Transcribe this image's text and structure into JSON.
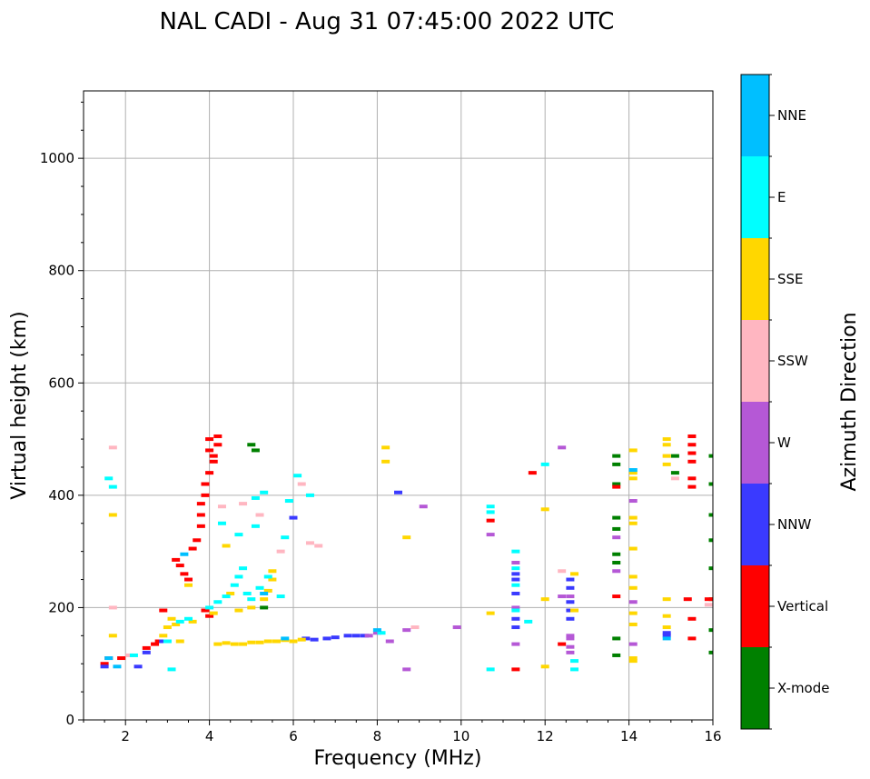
{
  "chart_data": {
    "type": "scatter",
    "title": "NAL CADI - Aug 31 07:45:00 2022 UTC",
    "xlabel": "Frequency (MHz)",
    "ylabel": "Virtual height (km)",
    "xlim": [
      1,
      16
    ],
    "ylim": [
      0,
      1120
    ],
    "xticks": [
      2,
      4,
      6,
      8,
      10,
      12,
      14,
      16
    ],
    "yticks": [
      0,
      200,
      400,
      600,
      800,
      1000
    ],
    "grid": true,
    "colorbar": {
      "label": "Azimuth Direction",
      "categories": [
        {
          "name": "X-mode",
          "color": "#008000"
        },
        {
          "name": "Vertical",
          "color": "#ff0000"
        },
        {
          "name": "NNW",
          "color": "#3a3aff"
        },
        {
          "name": "W",
          "color": "#b558d6"
        },
        {
          "name": "SSW",
          "color": "#ffb6c1"
        },
        {
          "name": "SSE",
          "color": "#ffd700"
        },
        {
          "name": "E",
          "color": "#00ffff"
        },
        {
          "name": "NNE",
          "color": "#00bfff"
        }
      ]
    },
    "series": [
      {
        "name": "X-mode",
        "points": [
          [
            5.0,
            490
          ],
          [
            5.1,
            480
          ],
          [
            5.3,
            200
          ],
          [
            13.7,
            470
          ],
          [
            13.7,
            455
          ],
          [
            13.7,
            420
          ],
          [
            13.7,
            360
          ],
          [
            13.7,
            340
          ],
          [
            13.7,
            295
          ],
          [
            13.7,
            280
          ],
          [
            13.7,
            145
          ],
          [
            13.7,
            115
          ],
          [
            15.1,
            470
          ],
          [
            15.1,
            440
          ],
          [
            16.0,
            470
          ],
          [
            16.0,
            420
          ],
          [
            16.0,
            365
          ],
          [
            16.0,
            320
          ],
          [
            16.0,
            270
          ],
          [
            16.0,
            215
          ],
          [
            16.0,
            160
          ],
          [
            16.0,
            120
          ]
        ]
      },
      {
        "name": "Vertical",
        "points": [
          [
            1.5,
            100
          ],
          [
            1.6,
            110
          ],
          [
            1.9,
            110
          ],
          [
            2.5,
            128
          ],
          [
            2.7,
            135
          ],
          [
            2.8,
            140
          ],
          [
            2.9,
            195
          ],
          [
            3.2,
            285
          ],
          [
            3.3,
            275
          ],
          [
            3.4,
            260
          ],
          [
            3.5,
            250
          ],
          [
            3.6,
            305
          ],
          [
            3.7,
            320
          ],
          [
            3.8,
            345
          ],
          [
            3.8,
            365
          ],
          [
            3.8,
            385
          ],
          [
            3.9,
            400
          ],
          [
            3.9,
            420
          ],
          [
            4.0,
            440
          ],
          [
            4.0,
            480
          ],
          [
            4.0,
            500
          ],
          [
            4.1,
            460
          ],
          [
            4.1,
            470
          ],
          [
            4.2,
            490
          ],
          [
            4.2,
            505
          ],
          [
            3.9,
            195
          ],
          [
            4.0,
            185
          ],
          [
            10.7,
            355
          ],
          [
            11.3,
            90
          ],
          [
            11.7,
            440
          ],
          [
            12.4,
            135
          ],
          [
            13.7,
            415
          ],
          [
            13.7,
            220
          ],
          [
            15.5,
            505
          ],
          [
            15.5,
            490
          ],
          [
            15.5,
            475
          ],
          [
            15.5,
            460
          ],
          [
            15.5,
            430
          ],
          [
            15.5,
            415
          ],
          [
            15.5,
            180
          ],
          [
            15.5,
            145
          ],
          [
            15.4,
            215
          ],
          [
            15.9,
            215
          ]
        ]
      },
      {
        "name": "NNW",
        "points": [
          [
            1.5,
            95
          ],
          [
            2.3,
            95
          ],
          [
            2.5,
            120
          ],
          [
            2.9,
            140
          ],
          [
            6.0,
            360
          ],
          [
            6.3,
            145
          ],
          [
            6.5,
            143
          ],
          [
            6.8,
            145
          ],
          [
            7.0,
            147
          ],
          [
            7.3,
            150
          ],
          [
            7.5,
            150
          ],
          [
            7.7,
            150
          ],
          [
            8.5,
            405
          ],
          [
            11.3,
            260
          ],
          [
            11.3,
            250
          ],
          [
            11.3,
            180
          ],
          [
            11.3,
            165
          ],
          [
            11.3,
            225
          ],
          [
            12.6,
            250
          ],
          [
            12.6,
            235
          ],
          [
            12.6,
            210
          ],
          [
            12.6,
            195
          ],
          [
            12.6,
            180
          ],
          [
            14.9,
            155
          ],
          [
            14.9,
            150
          ]
        ]
      },
      {
        "name": "W",
        "points": [
          [
            7.8,
            150
          ],
          [
            8.0,
            155
          ],
          [
            8.3,
            140
          ],
          [
            8.7,
            160
          ],
          [
            8.7,
            90
          ],
          [
            9.1,
            380
          ],
          [
            9.9,
            165
          ],
          [
            10.7,
            330
          ],
          [
            11.3,
            135
          ],
          [
            11.3,
            200
          ],
          [
            11.3,
            280
          ],
          [
            12.4,
            485
          ],
          [
            12.4,
            220
          ],
          [
            12.6,
            150
          ],
          [
            12.6,
            145
          ],
          [
            12.6,
            130
          ],
          [
            12.6,
            120
          ],
          [
            12.6,
            220
          ],
          [
            13.7,
            325
          ],
          [
            13.7,
            265
          ],
          [
            14.1,
            390
          ],
          [
            14.1,
            210
          ],
          [
            14.1,
            135
          ]
        ]
      },
      {
        "name": "SSW",
        "points": [
          [
            1.7,
            485
          ],
          [
            1.7,
            200
          ],
          [
            2.1,
            115
          ],
          [
            4.3,
            380
          ],
          [
            4.8,
            385
          ],
          [
            5.2,
            365
          ],
          [
            5.7,
            300
          ],
          [
            6.2,
            420
          ],
          [
            6.4,
            315
          ],
          [
            6.6,
            310
          ],
          [
            8.9,
            165
          ],
          [
            12.4,
            265
          ],
          [
            14.9,
            470
          ],
          [
            15.1,
            430
          ],
          [
            15.9,
            205
          ]
        ]
      },
      {
        "name": "SSE",
        "points": [
          [
            1.7,
            365
          ],
          [
            1.7,
            150
          ],
          [
            2.9,
            150
          ],
          [
            3.0,
            165
          ],
          [
            3.1,
            180
          ],
          [
            3.2,
            170
          ],
          [
            3.3,
            140
          ],
          [
            3.5,
            240
          ],
          [
            3.6,
            175
          ],
          [
            4.2,
            135
          ],
          [
            4.4,
            137
          ],
          [
            4.6,
            135
          ],
          [
            4.8,
            135
          ],
          [
            5.0,
            138
          ],
          [
            5.2,
            138
          ],
          [
            5.4,
            140
          ],
          [
            5.6,
            140
          ],
          [
            5.8,
            142
          ],
          [
            6.0,
            140
          ],
          [
            6.2,
            143
          ],
          [
            4.5,
            225
          ],
          [
            4.7,
            195
          ],
          [
            5.0,
            200
          ],
          [
            5.3,
            215
          ],
          [
            5.4,
            230
          ],
          [
            5.5,
            250
          ],
          [
            5.5,
            265
          ],
          [
            4.1,
            190
          ],
          [
            4.4,
            310
          ],
          [
            8.2,
            485
          ],
          [
            8.2,
            460
          ],
          [
            8.7,
            325
          ],
          [
            10.7,
            190
          ],
          [
            12.0,
            375
          ],
          [
            12.0,
            215
          ],
          [
            12.0,
            95
          ],
          [
            12.7,
            260
          ],
          [
            12.7,
            195
          ],
          [
            14.1,
            480
          ],
          [
            14.1,
            440
          ],
          [
            14.1,
            430
          ],
          [
            14.1,
            360
          ],
          [
            14.1,
            350
          ],
          [
            14.1,
            305
          ],
          [
            14.1,
            255
          ],
          [
            14.1,
            235
          ],
          [
            14.1,
            190
          ],
          [
            14.1,
            170
          ],
          [
            14.1,
            110
          ],
          [
            14.1,
            105
          ],
          [
            14.9,
            500
          ],
          [
            14.9,
            490
          ],
          [
            14.9,
            470
          ],
          [
            14.9,
            455
          ],
          [
            14.9,
            215
          ],
          [
            14.9,
            185
          ],
          [
            14.9,
            165
          ]
        ]
      },
      {
        "name": "E",
        "points": [
          [
            1.6,
            430
          ],
          [
            1.7,
            415
          ],
          [
            2.2,
            115
          ],
          [
            3.0,
            140
          ],
          [
            3.1,
            90
          ],
          [
            3.3,
            175
          ],
          [
            3.5,
            180
          ],
          [
            4.0,
            200
          ],
          [
            4.2,
            210
          ],
          [
            4.4,
            220
          ],
          [
            4.6,
            240
          ],
          [
            4.7,
            255
          ],
          [
            4.8,
            270
          ],
          [
            4.9,
            225
          ],
          [
            5.0,
            215
          ],
          [
            5.2,
            235
          ],
          [
            5.4,
            255
          ],
          [
            5.7,
            220
          ],
          [
            5.8,
            325
          ],
          [
            5.9,
            390
          ],
          [
            6.1,
            435
          ],
          [
            6.4,
            400
          ],
          [
            5.1,
            395
          ],
          [
            5.3,
            405
          ],
          [
            4.3,
            350
          ],
          [
            4.7,
            330
          ],
          [
            5.1,
            345
          ],
          [
            8.1,
            155
          ],
          [
            10.7,
            380
          ],
          [
            10.7,
            370
          ],
          [
            10.7,
            90
          ],
          [
            11.3,
            300
          ],
          [
            11.3,
            270
          ],
          [
            11.3,
            240
          ],
          [
            11.3,
            195
          ],
          [
            11.6,
            175
          ],
          [
            12.0,
            455
          ],
          [
            12.7,
            105
          ],
          [
            12.7,
            90
          ],
          [
            14.1,
            445
          ]
        ]
      },
      {
        "name": "NNE",
        "points": [
          [
            1.6,
            110
          ],
          [
            1.8,
            95
          ],
          [
            3.4,
            295
          ],
          [
            5.3,
            225
          ],
          [
            5.8,
            145
          ],
          [
            8.0,
            160
          ],
          [
            14.1,
            445
          ],
          [
            14.9,
            145
          ]
        ]
      }
    ]
  }
}
